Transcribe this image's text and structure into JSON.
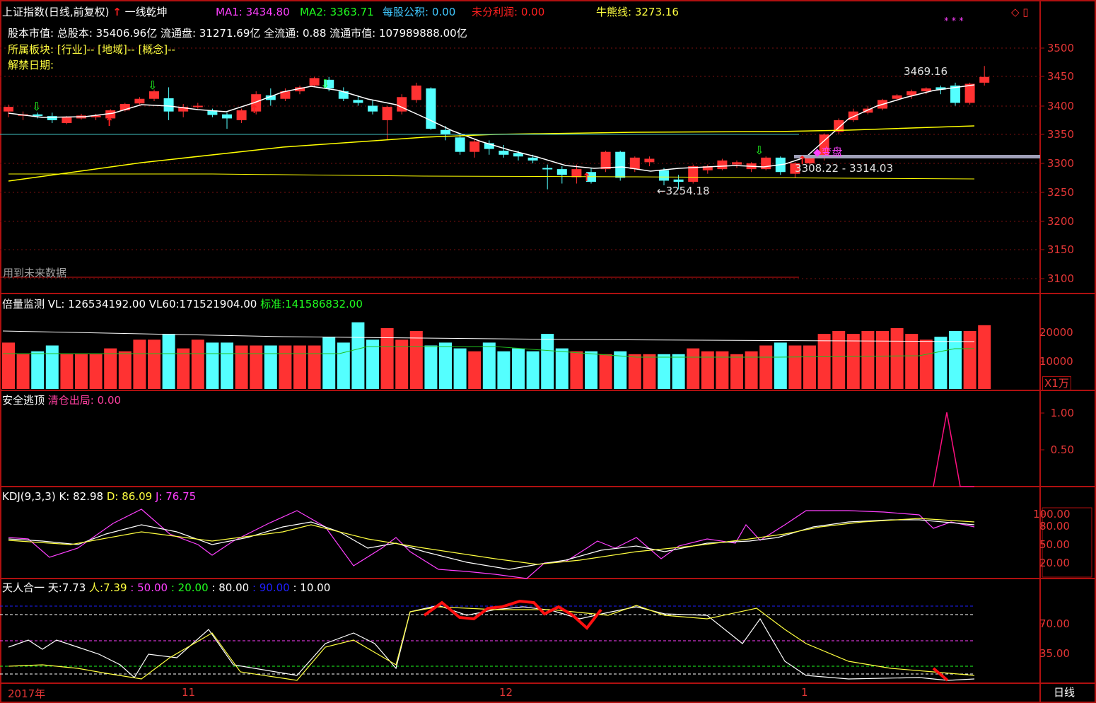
{
  "colors": {
    "up": "#ff3232",
    "down": "#54ffff",
    "frame": "#b01010",
    "ma1": "#ffffff",
    "ma2": "#ffff00",
    "guide": "#40c0c0"
  },
  "main": {
    "title": "上证指数(日线,前复权)",
    "indicator": "一线乾坤",
    "ma1_label": "MA1:",
    "ma1_value": "3434.80",
    "ma2_label": "MA2:",
    "ma2_value": "3363.71",
    "eps_label": "每股公积:",
    "eps_value": "0.00",
    "undist_label": "未分利润:",
    "undist_value": "0.00",
    "bull_label": "牛熊线:",
    "bull_value": "3273.16",
    "info_line1": "股本市值: 总股本: 35406.96亿 流通盘: 31271.69亿 全流通: 0.88 流通市值: 107989888.00亿",
    "sector_label": "所属板块:",
    "sector_values": "[行业]-- [地域]-- [概念]--",
    "unlock_label": "解禁日期:",
    "future_note": "用到未来数据",
    "high_mark": "3469.16",
    "low_mark": "←3254.18",
    "range_mark": "3308.22 - 3314.03",
    "zone_mark": "◆变盘",
    "corner_icons": "◇ ▯",
    "stars": "* * *",
    "y_ticks": [
      "3500",
      "3450",
      "3400",
      "3350",
      "3300",
      "3250",
      "3200",
      "3150",
      "3100"
    ]
  },
  "volume": {
    "title": "倍量监测",
    "vl_label": "VL:",
    "vl_value": "126534192.00",
    "vl60_label": "VL60:",
    "vl60_value": "171521904.00",
    "std_label": "标准:",
    "std_value": "141586832.00",
    "y_ticks": [
      "20000",
      "10000"
    ],
    "unit": "X1万"
  },
  "escape": {
    "title": "安全逃顶",
    "clear_label": "清仓出局:",
    "clear_value": "0.00",
    "y_ticks": [
      "1.00",
      "0.50"
    ]
  },
  "kdj": {
    "title": "KDJ(9,3,3)",
    "k_label": "K:",
    "k_value": "82.98",
    "d_label": "D:",
    "d_value": "86.09",
    "j_label": "J:",
    "j_value": "76.75",
    "y_ticks": [
      "100.00",
      "80.00",
      "50.00",
      "20.00"
    ]
  },
  "trh": {
    "title": "天人合一",
    "tian_label": "天:",
    "tian_value": "7.73",
    "ren_label": "人:",
    "ren_value": "7.39",
    "v50": ": 50.00",
    "v20": ": 20.00",
    "v80": ": 80.00",
    "v90": ": 90.00",
    "v10": ": 10.00",
    "y_ticks": [
      "70.00",
      "35.00"
    ]
  },
  "xaxis": {
    "labels": [
      "2017年",
      "11",
      "12",
      "1"
    ],
    "period": "日线"
  }
}
